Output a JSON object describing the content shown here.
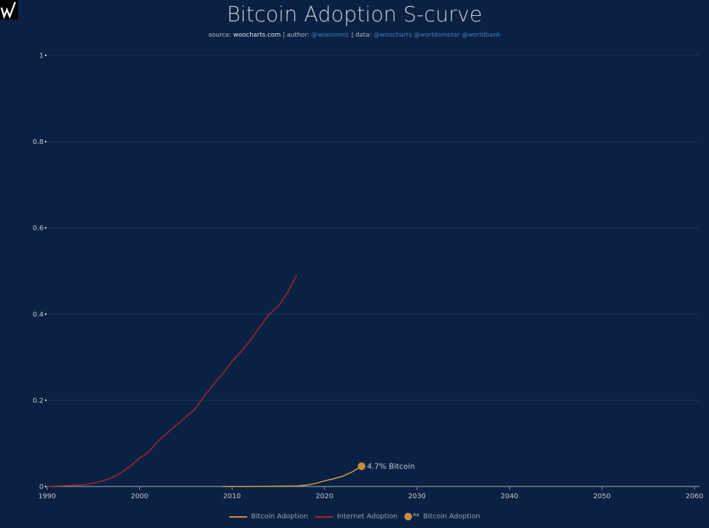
{
  "chart_data": {
    "type": "line",
    "title": "Bitcoin Adoption S-curve",
    "subtitle": {
      "source_label": "source:",
      "source": "woocharts.com",
      "author_label": "| author:",
      "author": "@woonomic",
      "data_label": "| data:",
      "data_sources": "@woocharts @worldometer @worldbank"
    },
    "xlim": [
      1990,
      2060
    ],
    "ylim": [
      0,
      1
    ],
    "x_ticks": [
      "1990",
      "2000",
      "2010",
      "2020",
      "2030",
      "2040",
      "2050",
      "2060"
    ],
    "y_ticks": [
      "0",
      "0.2",
      "0.4",
      "0.6",
      "0.8",
      "1"
    ],
    "grid": true,
    "legend_placement": "bottom-center",
    "series": [
      {
        "name": "Bitcoin Adoption",
        "color": "#d39a45",
        "x": [
          2009,
          2010,
          2011,
          2012,
          2013,
          2014,
          2015,
          2016,
          2017,
          2018,
          2019,
          2020,
          2021,
          2022,
          2023,
          2024
        ],
        "y": [
          0,
          0,
          0,
          0,
          0.0003,
          0.0005,
          0.0007,
          0.0009,
          0.0012,
          0.003,
          0.007,
          0.013,
          0.018,
          0.024,
          0.034,
          0.047
        ]
      },
      {
        "name": "Internet Adoption",
        "color": "#a3282b",
        "x": [
          1990,
          1991,
          1992,
          1993,
          1994,
          1995,
          1996,
          1997,
          1998,
          1999,
          2000,
          2001,
          2002,
          2003,
          2004,
          2005,
          2006,
          2007,
          2008,
          2009,
          2010,
          2011,
          2012,
          2013,
          2014,
          2015,
          2016,
          2017
        ],
        "y": [
          0,
          0.001,
          0.002,
          0.003,
          0.004,
          0.008,
          0.013,
          0.02,
          0.032,
          0.047,
          0.066,
          0.08,
          0.106,
          0.124,
          0.143,
          0.161,
          0.18,
          0.21,
          0.237,
          0.262,
          0.29,
          0.313,
          0.34,
          0.37,
          0.399,
          0.418,
          0.45,
          0.49
        ]
      }
    ],
    "annotation": {
      "text": "4.7% Bitcoin",
      "x": 2024,
      "y": 0.047,
      "color": "#c38f3f"
    },
    "legend": [
      {
        "label": "Bitcoin Adoption",
        "color": "#d39a45",
        "kind": "line"
      },
      {
        "label": "Internet Adoption",
        "color": "#a3282b",
        "kind": "line"
      },
      {
        "label": "Bitcoin Adoption",
        "color": "#c38f3f",
        "kind": "marker",
        "marker_text": "Aa"
      }
    ]
  },
  "colors": {
    "background": "#0b2143",
    "grid": "#173660",
    "axis": "#8b95a3"
  }
}
